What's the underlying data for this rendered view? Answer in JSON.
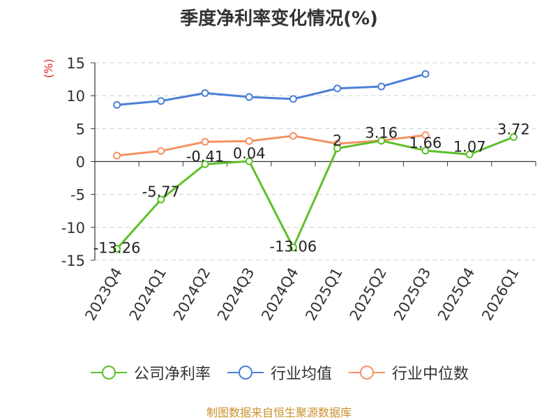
{
  "chart_data": {
    "type": "line",
    "title": "季度净利率变化情况(%)",
    "y_unit": "(%)",
    "categories": [
      "2023Q4",
      "2024Q1",
      "2024Q2",
      "2024Q3",
      "2024Q4",
      "2025Q1",
      "2025Q2",
      "2025Q3",
      "2025Q4",
      "2026Q1"
    ],
    "ylim": [
      -15,
      15
    ],
    "yticks": [
      15,
      10,
      5,
      0,
      -5,
      -10,
      -15
    ],
    "grid": true,
    "legend_position": "bottom",
    "series": [
      {
        "name": "公司净利率",
        "color": "#5cc028",
        "values": [
          -13.26,
          -5.77,
          -0.41,
          0.04,
          -13.06,
          2,
          3.16,
          1.66,
          1.07,
          3.72
        ],
        "labels": [
          "-13.26",
          "-5.77",
          "-0.41",
          "0.04",
          "-13.06",
          "2",
          "3.16",
          "1.66",
          "1.07",
          "3.72"
        ]
      },
      {
        "name": "行业均值",
        "color": "#4b7fd6",
        "values": [
          8.6,
          9.2,
          10.4,
          9.8,
          9.5,
          11.1,
          11.4,
          13.3,
          null,
          null
        ]
      },
      {
        "name": "行业中位数",
        "color": "#f59262",
        "values": [
          0.9,
          1.6,
          3.0,
          3.1,
          3.9,
          2.7,
          3.2,
          4.0,
          null,
          null
        ]
      }
    ]
  },
  "footer": "制图数据来自恒生聚源数据库"
}
